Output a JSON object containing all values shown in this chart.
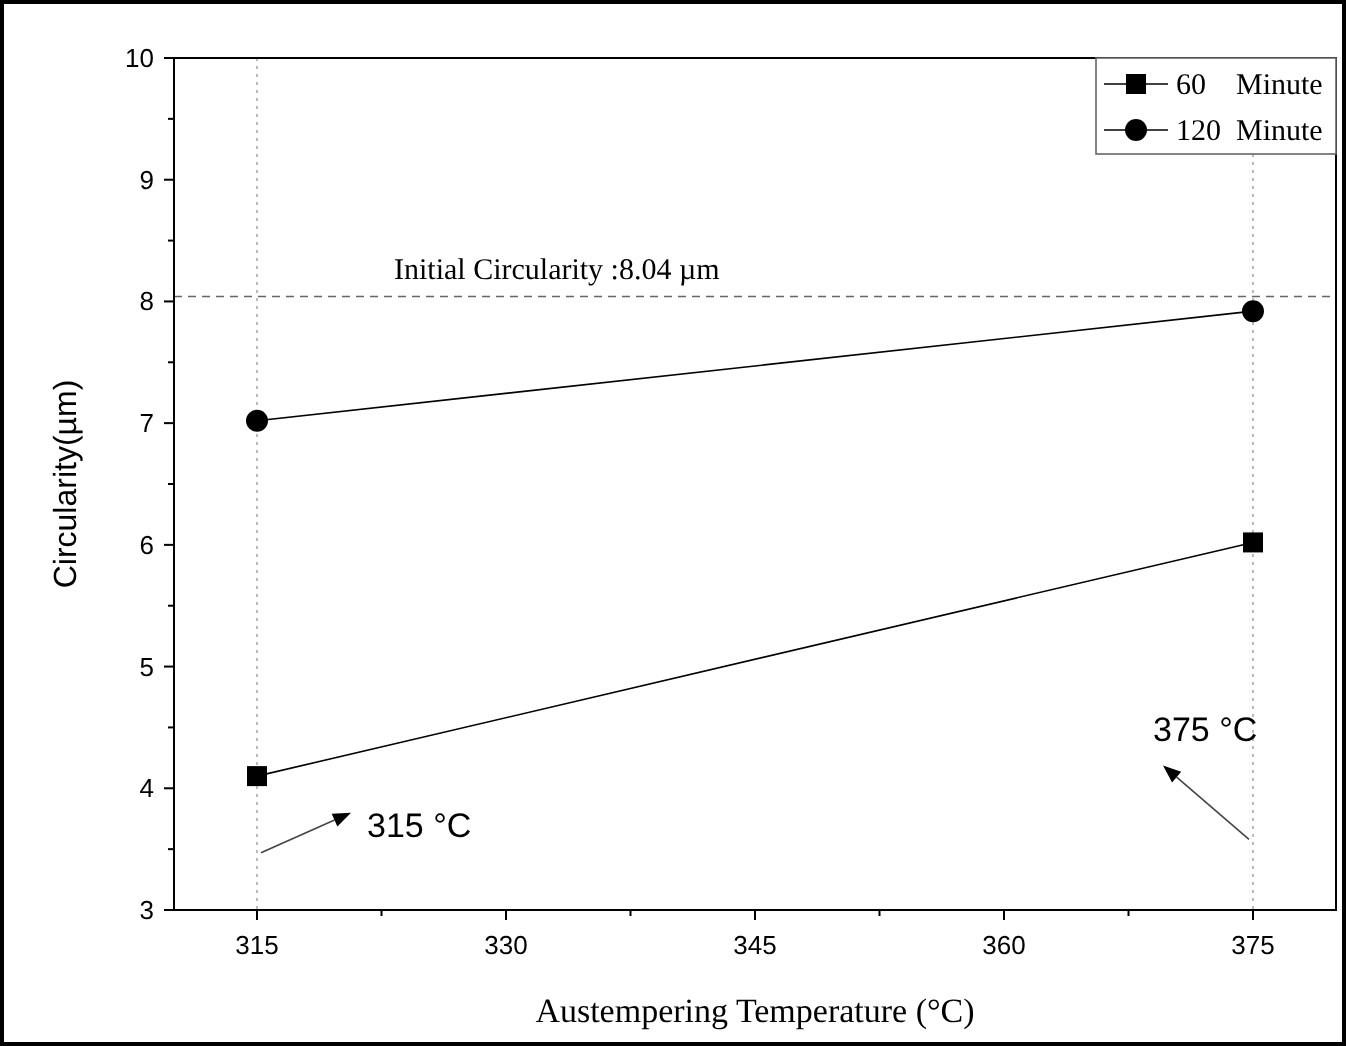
{
  "chart_data": {
    "type": "line",
    "xlabel": "Austempering Temperature (°C)",
    "ylabel": "Circularity(µm)",
    "x": [
      315,
      375
    ],
    "series": [
      {
        "name": "60    Minute",
        "color": "#000000",
        "values": [
          4.1,
          6.02
        ],
        "marker": "square"
      },
      {
        "name": "120  Minute",
        "color": "#000000",
        "values": [
          7.02,
          7.92
        ],
        "marker": "circle"
      }
    ],
    "xlim": [
      310,
      380
    ],
    "xticks": [
      315,
      330,
      345,
      360,
      375
    ],
    "ylim": [
      3,
      10
    ],
    "yticks": [
      3,
      4,
      5,
      6,
      7,
      8,
      9,
      10
    ],
    "ref_lines": [
      {
        "axis": "y",
        "value": 8.04,
        "label": "Initial Circularity :8.04 µm",
        "line_style": "dashed",
        "color": "#666666"
      },
      {
        "axis": "x",
        "value": 315,
        "line_style": "dotted",
        "color": "#aaaaaa"
      },
      {
        "axis": "x",
        "value": 375,
        "line_style": "dotted",
        "color": "#aaaaaa"
      }
    ],
    "annotations": [
      {
        "text": "315 °C",
        "x": 315,
        "y": 3.47
      },
      {
        "text": "375 °C",
        "x": 375,
        "y": 3.58
      }
    ],
    "legend": "top right",
    "grid": false,
    "line_style": "solid"
  }
}
